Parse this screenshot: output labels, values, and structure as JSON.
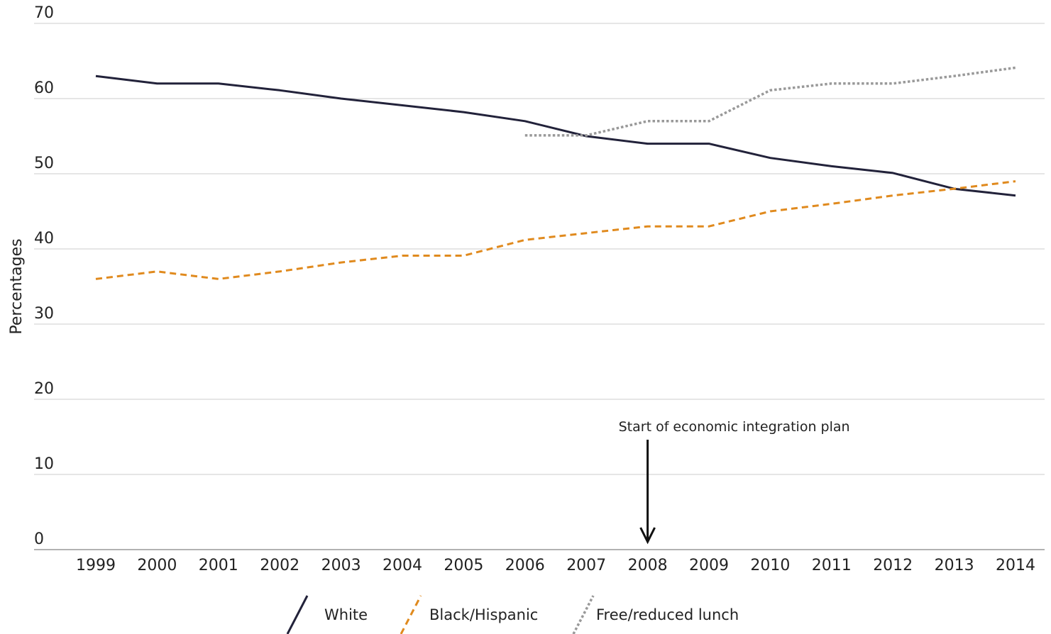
{
  "chart_data": {
    "type": "line",
    "title": "",
    "xlabel": "",
    "ylabel": "Percentages",
    "ylim": [
      0,
      70
    ],
    "yticks": [
      "0",
      "10",
      "20",
      "30",
      "40",
      "50",
      "60",
      "70"
    ],
    "x": [
      "1999",
      "2000",
      "2001",
      "2002",
      "2003",
      "2004",
      "2005",
      "2006",
      "2007",
      "2008",
      "2009",
      "2010",
      "2011",
      "2012",
      "2013",
      "2014"
    ],
    "grid": true,
    "legend_position": "bottom",
    "series": [
      {
        "name": "White",
        "color": "#22223a",
        "style": "solid",
        "values": [
          63,
          62,
          62,
          61.1,
          60,
          59.1,
          58.2,
          57,
          55,
          54,
          54,
          52.1,
          51,
          50.1,
          48,
          47.1
        ]
      },
      {
        "name": "Black/Hispanic",
        "color": "#e08a1e",
        "style": "dashed",
        "values": [
          36,
          37,
          36,
          37,
          38.2,
          39.1,
          39.1,
          41.2,
          42.1,
          43,
          43,
          45,
          46,
          47.1,
          48,
          49
        ]
      },
      {
        "name": "Free/reduced lunch",
        "color": "#999999",
        "style": "dotted",
        "values": [
          null,
          null,
          null,
          null,
          null,
          null,
          null,
          55.1,
          55.1,
          57,
          57,
          61.1,
          62,
          62,
          63,
          64.1
        ]
      }
    ],
    "annotations": [
      {
        "text": "Start of economic integration plan",
        "x": "2008"
      }
    ]
  }
}
